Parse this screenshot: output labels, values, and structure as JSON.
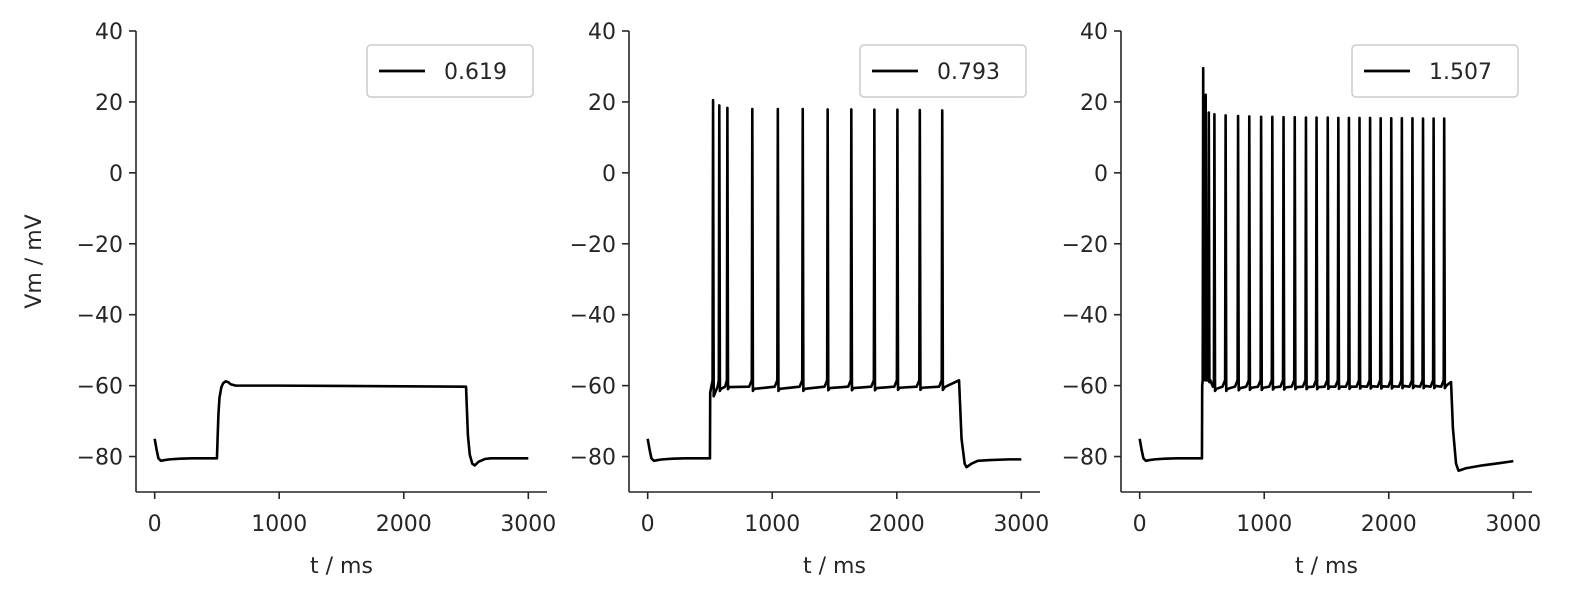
{
  "chart_data": [
    {
      "type": "line",
      "xlabel": "t / ms",
      "ylabel": "Vm / mV",
      "xlim": [
        -150,
        3150
      ],
      "ylim": [
        -90,
        40
      ],
      "xticks": [
        0,
        1000,
        2000,
        3000
      ],
      "yticks": [
        -80,
        -60,
        -40,
        -20,
        0,
        20,
        40
      ],
      "xtick_labels": [
        "0",
        "1000",
        "2000",
        "3000"
      ],
      "ytick_labels": [
        "−80",
        "−60",
        "−40",
        "−20",
        "0",
        "20",
        "40"
      ],
      "legend_position": "top-right",
      "series": [
        {
          "name": "0.619",
          "color": "#000000",
          "x": [
            0,
            15,
            30,
            50,
            80,
            120,
            200,
            300,
            400,
            499,
            500,
            505,
            512,
            520,
            535,
            550,
            570,
            590,
            610,
            650,
            700,
            800,
            1000,
            1500,
            2000,
            2499,
            2500,
            2505,
            2515,
            2530,
            2550,
            2570,
            2600,
            2650,
            2700,
            2800,
            2900,
            3000
          ],
          "y": [
            -75,
            -78,
            -80.5,
            -81.2,
            -81.0,
            -80.8,
            -80.6,
            -80.5,
            -80.5,
            -80.5,
            -80.5,
            -75,
            -68,
            -63.5,
            -60.5,
            -59.3,
            -58.8,
            -59.0,
            -59.6,
            -60.0,
            -60.0,
            -60.0,
            -60.0,
            -60.1,
            -60.2,
            -60.3,
            -60.3,
            -65,
            -74,
            -79.5,
            -82.0,
            -82.5,
            -81.5,
            -80.7,
            -80.5,
            -80.5,
            -80.5,
            -80.5
          ]
        }
      ],
      "spikes": null
    },
    {
      "type": "line",
      "xlabel": "t / ms",
      "ylabel": "",
      "xlim": [
        -150,
        3150
      ],
      "ylim": [
        -90,
        40
      ],
      "xticks": [
        0,
        1000,
        2000,
        3000
      ],
      "yticks": [
        -80,
        -60,
        -40,
        -20,
        0,
        20,
        40
      ],
      "xtick_labels": [
        "0",
        "1000",
        "2000",
        "3000"
      ],
      "ytick_labels": [
        "−80",
        "−60",
        "−40",
        "−20",
        "0",
        "20",
        "40"
      ],
      "legend_position": "top-right",
      "series": [
        {
          "name": "0.793",
          "color": "#000000",
          "x": [
            0,
            15,
            30,
            50,
            80,
            120,
            200,
            300,
            400,
            499
          ],
          "y": [
            -75,
            -78,
            -80.5,
            -81.2,
            -81.0,
            -80.8,
            -80.6,
            -80.5,
            -80.5,
            -80.5
          ]
        }
      ],
      "spikes": {
        "onset": 500,
        "plateau": -62,
        "pre_spike": -58.5,
        "times": [
          525,
          575,
          640,
          840,
          1045,
          1245,
          1445,
          1635,
          1820,
          2005,
          2185,
          2365
        ],
        "peaks": [
          20.5,
          19,
          18.3,
          18.0,
          18.0,
          18.0,
          17.9,
          17.9,
          17.8,
          17.8,
          17.7,
          17.6
        ],
        "troughs": [
          -63,
          -61.5,
          -61,
          -61.5,
          -61.5,
          -61.5,
          -61.3,
          -61.3,
          -61.3,
          -61.2,
          -61.2,
          -61.2
        ],
        "offset": 2500,
        "offset_values": [
          -58.5,
          -75,
          -82,
          -83,
          -82,
          -81.2,
          -81.0,
          -80.8,
          -80.8
        ],
        "offset_times": [
          2500,
          2520,
          2545,
          2560,
          2600,
          2650,
          2750,
          2900,
          3000
        ]
      }
    },
    {
      "type": "line",
      "xlabel": "t / ms",
      "ylabel": "",
      "xlim": [
        -150,
        3150
      ],
      "ylim": [
        -90,
        40
      ],
      "xticks": [
        0,
        1000,
        2000,
        3000
      ],
      "yticks": [
        -80,
        -60,
        -40,
        -20,
        0,
        20,
        40
      ],
      "xtick_labels": [
        "0",
        "1000",
        "2000",
        "3000"
      ],
      "ytick_labels": [
        "−80",
        "−60",
        "−40",
        "−20",
        "0",
        "20",
        "40"
      ],
      "legend_position": "top-right",
      "series": [
        {
          "name": "1.507",
          "color": "#000000",
          "x": [
            0,
            15,
            30,
            50,
            80,
            120,
            200,
            300,
            400,
            499
          ],
          "y": [
            -75,
            -78,
            -80.5,
            -81.2,
            -81.0,
            -80.8,
            -80.6,
            -80.5,
            -80.5,
            -80.5
          ]
        }
      ],
      "spikes": {
        "onset": 500,
        "plateau": -60,
        "pre_spike": -58.5,
        "times": [
          510,
          530,
          555,
          600,
          690,
          790,
          880,
          975,
          1065,
          1155,
          1245,
          1335,
          1420,
          1510,
          1595,
          1680,
          1765,
          1850,
          1935,
          2020,
          2105,
          2190,
          2275,
          2360,
          2445
        ],
        "peaks": [
          29.5,
          22,
          17,
          16.5,
          16.2,
          16.0,
          15.9,
          15.8,
          15.8,
          15.7,
          15.7,
          15.6,
          15.6,
          15.6,
          15.5,
          15.5,
          15.5,
          15.5,
          15.4,
          15.4,
          15.4,
          15.4,
          15.3,
          15.3,
          15.3
        ],
        "troughs": [
          -58,
          -58.5,
          -59,
          -61.5,
          -61.5,
          -61.3,
          -61.2,
          -61.2,
          -61.1,
          -61.1,
          -61.0,
          -61.0,
          -61.0,
          -60.9,
          -60.9,
          -60.9,
          -60.8,
          -60.8,
          -60.8,
          -60.8,
          -60.7,
          -60.7,
          -60.7,
          -60.7,
          -60.7
        ],
        "offset": 2500,
        "offset_values": [
          -59,
          -72,
          -82,
          -84,
          -83.3,
          -82.5,
          -81.8,
          -81.3
        ],
        "offset_times": [
          2500,
          2515,
          2540,
          2560,
          2620,
          2750,
          2900,
          3000
        ]
      }
    }
  ]
}
